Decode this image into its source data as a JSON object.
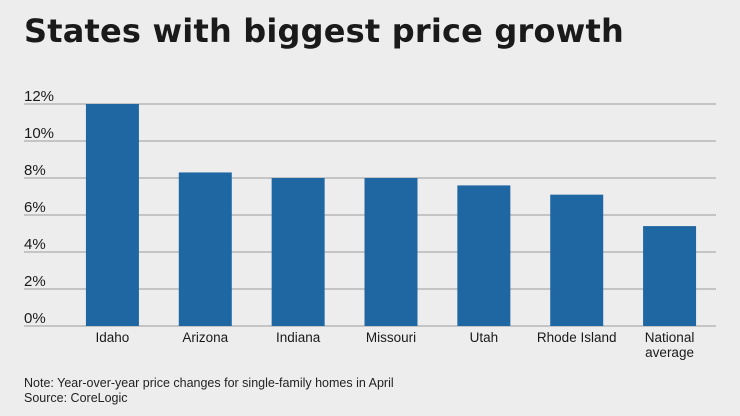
{
  "title": "States with biggest price growth",
  "note": "Note: Year-over-year price changes for single-family homes in April",
  "source": "Source: CoreLogic",
  "colors": {
    "bar": "#1f67a2",
    "grid": "#9a9a9a",
    "background": "#ededed"
  },
  "chart_data": {
    "type": "bar",
    "categories": [
      "Idaho",
      "Arizona",
      "Indiana",
      "Missouri",
      "Utah",
      "Rhode Island",
      "National\naverage"
    ],
    "values": [
      12.0,
      8.3,
      8.0,
      8.0,
      7.6,
      7.1,
      5.4
    ],
    "ylim": [
      0,
      12
    ],
    "yticks": [
      0,
      2,
      4,
      6,
      8,
      10,
      12
    ],
    "ytick_labels": [
      "0%",
      "2%",
      "4%",
      "6%",
      "8%",
      "10%",
      "12%"
    ],
    "grid": true,
    "xlabel": "",
    "ylabel": ""
  }
}
